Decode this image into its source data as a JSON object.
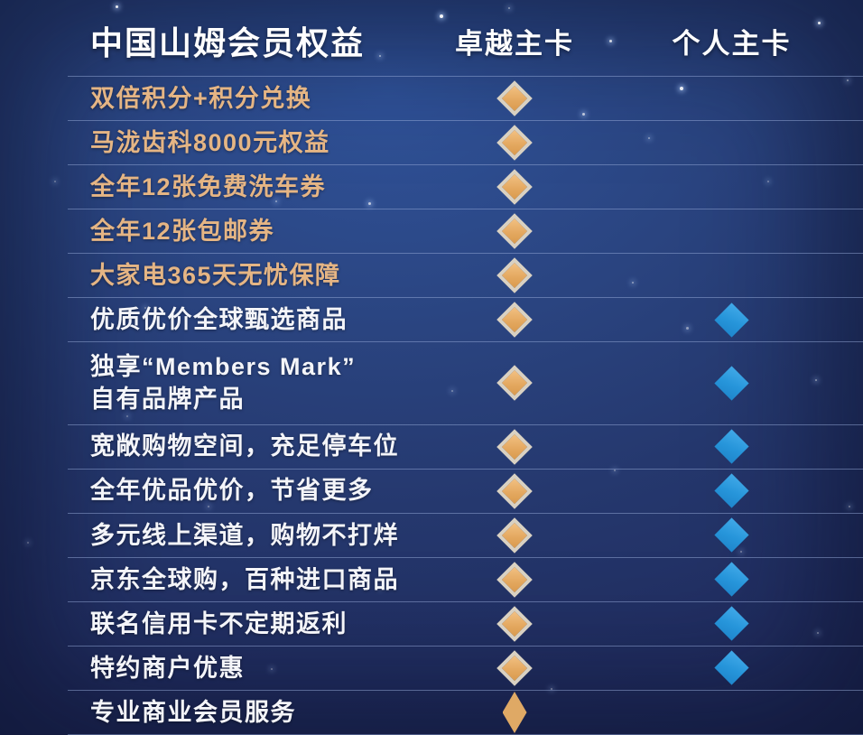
{
  "header": {
    "title": "中国山姆会员权益",
    "excellence_label": "卓越主卡",
    "personal_label": "个人主卡"
  },
  "rows": [
    {
      "label": "双倍积分+积分兑换",
      "emphasis": "gold",
      "excellence": true,
      "personal": false
    },
    {
      "label": "马泷齿科8000元权益",
      "emphasis": "gold",
      "excellence": true,
      "personal": false
    },
    {
      "label": "全年12张免费洗车券",
      "emphasis": "gold",
      "excellence": true,
      "personal": false
    },
    {
      "label": "全年12张包邮券",
      "emphasis": "gold",
      "excellence": true,
      "personal": false
    },
    {
      "label": "大家电365天无忧保障",
      "emphasis": "gold",
      "excellence": true,
      "personal": false
    },
    {
      "label": "优质优价全球甄选商品",
      "emphasis": "white",
      "excellence": true,
      "personal": true
    },
    {
      "label": "独享“Members Mark”\n自有品牌产品",
      "emphasis": "white",
      "excellence": true,
      "personal": true,
      "two_line": true
    },
    {
      "label": "宽敞购物空间，充足停车位",
      "emphasis": "white",
      "excellence": true,
      "personal": true
    },
    {
      "label": "全年优品优价，节省更多",
      "emphasis": "white",
      "excellence": true,
      "personal": true
    },
    {
      "label": "多元线上渠道，购物不打烊",
      "emphasis": "white",
      "excellence": true,
      "personal": true
    },
    {
      "label": "京东全球购，百种进口商品",
      "emphasis": "white",
      "excellence": true,
      "personal": true
    },
    {
      "label": "联名信用卡不定期返利",
      "emphasis": "white",
      "excellence": true,
      "personal": true
    },
    {
      "label": "特约商户优惠",
      "emphasis": "white",
      "excellence": true,
      "personal": true
    },
    {
      "label": "专业商业会员服务",
      "emphasis": "white",
      "excellence": true,
      "personal": false,
      "narrow_diamond": true
    }
  ],
  "icons": {
    "excellence_mark": "gold-diamond",
    "personal_mark": "blue-diamond"
  },
  "colors": {
    "gold_diamond": "#e7ae66",
    "gold_diamond_border": "#d9d1c2",
    "blue_diamond": "#2b9ade",
    "gold_text": "#e5b584",
    "white_text": "#f4f5f9",
    "background_navy": "#25386e",
    "divider": "#94a8d7"
  },
  "chart_data": {
    "type": "table",
    "title": "中国山姆会员权益",
    "columns": [
      "权益",
      "卓越主卡",
      "个人主卡"
    ],
    "rows": [
      [
        "双倍积分+积分兑换",
        true,
        false
      ],
      [
        "马泷齿科8000元权益",
        true,
        false
      ],
      [
        "全年12张免费洗车券",
        true,
        false
      ],
      [
        "全年12张包邮券",
        true,
        false
      ],
      [
        "大家电365天无忧保障",
        true,
        false
      ],
      [
        "优质优价全球甄选商品",
        true,
        true
      ],
      [
        "独享“Members Mark”自有品牌产品",
        true,
        true
      ],
      [
        "宽敞购物空间，充足停车位",
        true,
        true
      ],
      [
        "全年优品优价，节省更多",
        true,
        true
      ],
      [
        "多元线上渠道，购物不打烊",
        true,
        true
      ],
      [
        "京东全球购，百种进口商品",
        true,
        true
      ],
      [
        "联名信用卡不定期返利",
        true,
        true
      ],
      [
        "特约商户优惠",
        true,
        true
      ],
      [
        "专业商业会员服务",
        true,
        false
      ]
    ],
    "legend_position": "none",
    "notes": "gold diamond = included with 卓越主卡, blue diamond = included with 个人主卡"
  }
}
